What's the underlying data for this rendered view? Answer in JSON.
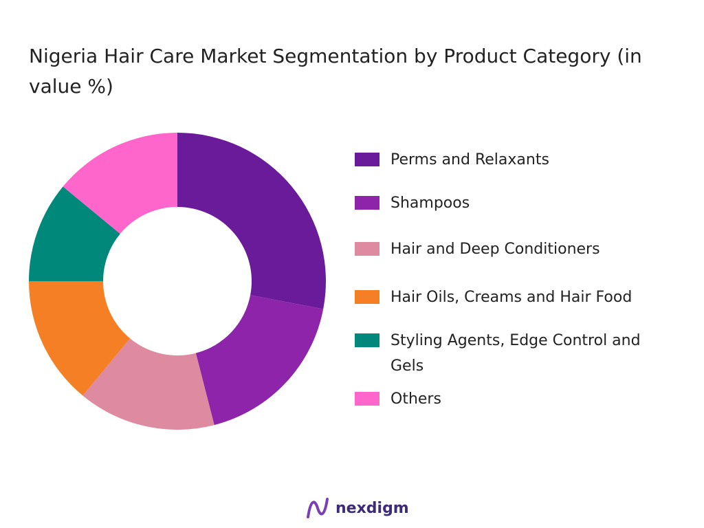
{
  "chart_data": {
    "type": "donut",
    "title": "Nigeria Hair Care Market Segmentation by Product Category (in value %)",
    "categories": [
      "Perms and Relaxants",
      "Shampoos",
      "Hair and Deep Conditioners",
      "Hair Oils, Creams and Hair Food",
      "Styling Agents, Edge Control and Gels",
      "Others"
    ],
    "values": [
      28,
      18,
      15,
      14,
      11,
      14
    ],
    "colors": [
      "#6a1b9a",
      "#8e24aa",
      "#de8aa0",
      "#f47f25",
      "#00897b",
      "#ff66cc"
    ],
    "legend": "right"
  },
  "logo": "nexdigm"
}
